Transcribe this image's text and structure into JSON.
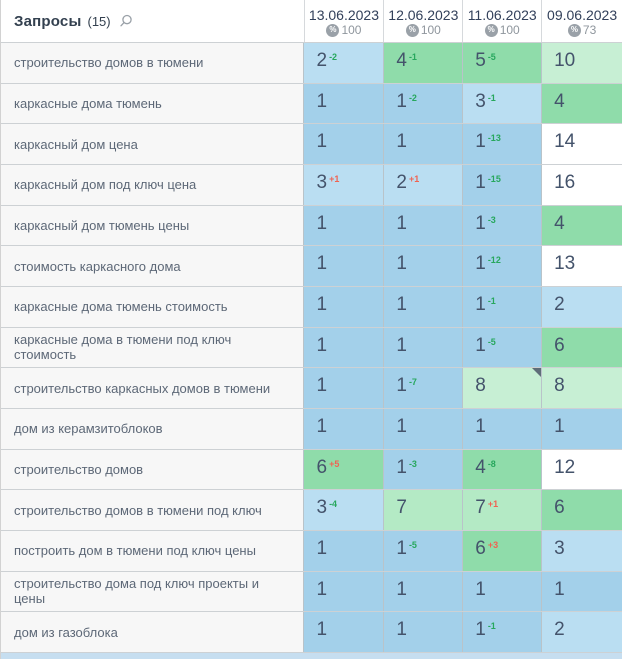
{
  "header": {
    "queries_label": "Запросы",
    "queries_count": "(15)",
    "columns": [
      {
        "date": "13.06.2023",
        "percent_symbol": "%",
        "percent": "100"
      },
      {
        "date": "12.06.2023",
        "percent_symbol": "%",
        "percent": "100"
      },
      {
        "date": "11.06.2023",
        "percent_symbol": "%",
        "percent": "100"
      },
      {
        "date": "09.06.2023",
        "percent_symbol": "%",
        "percent": "73"
      }
    ]
  },
  "colors": {
    "tones": {
      "pos1": "#a3d0ea",
      "pos2_3": "#badef2",
      "pos4_6": "#8fdcaa",
      "pos7": "#b4eac5",
      "pos8_10": "#c7efd4",
      "over10": "#ffffff"
    },
    "delta": {
      "green": "#27a75d",
      "red": "#ef6352"
    },
    "bottom_strip": "#c6def0"
  },
  "rows": [
    {
      "query": "строительство домов в тюмени",
      "cells": [
        {
          "value": "2",
          "delta": "-2",
          "delta_color": "green",
          "tone": "pos2_3"
        },
        {
          "value": "4",
          "delta": "-1",
          "delta_color": "green",
          "tone": "pos4_6"
        },
        {
          "value": "5",
          "delta": "-5",
          "delta_color": "green",
          "tone": "pos4_6"
        },
        {
          "value": "10",
          "tone": "pos8_10"
        }
      ]
    },
    {
      "query": "каркасные дома тюмень",
      "cells": [
        {
          "value": "1",
          "tone": "pos1"
        },
        {
          "value": "1",
          "delta": "-2",
          "delta_color": "green",
          "tone": "pos1"
        },
        {
          "value": "3",
          "delta": "-1",
          "delta_color": "green",
          "tone": "pos2_3"
        },
        {
          "value": "4",
          "tone": "pos4_6"
        }
      ]
    },
    {
      "query": "каркасный дом цена",
      "cells": [
        {
          "value": "1",
          "tone": "pos1"
        },
        {
          "value": "1",
          "tone": "pos1"
        },
        {
          "value": "1",
          "delta": "-13",
          "delta_color": "green",
          "tone": "pos1"
        },
        {
          "value": "14",
          "tone": "over10"
        }
      ]
    },
    {
      "query": "каркасный дом под ключ цена",
      "cells": [
        {
          "value": "3",
          "delta": "+1",
          "delta_color": "red",
          "tone": "pos2_3"
        },
        {
          "value": "2",
          "delta": "+1",
          "delta_color": "red",
          "tone": "pos2_3"
        },
        {
          "value": "1",
          "delta": "-15",
          "delta_color": "green",
          "tone": "pos1"
        },
        {
          "value": "16",
          "tone": "over10"
        }
      ]
    },
    {
      "query": "каркасный дом тюмень цены",
      "cells": [
        {
          "value": "1",
          "tone": "pos1"
        },
        {
          "value": "1",
          "tone": "pos1"
        },
        {
          "value": "1",
          "delta": "-3",
          "delta_color": "green",
          "tone": "pos1"
        },
        {
          "value": "4",
          "tone": "pos4_6"
        }
      ]
    },
    {
      "query": "стоимость каркасного дома",
      "cells": [
        {
          "value": "1",
          "tone": "pos1"
        },
        {
          "value": "1",
          "tone": "pos1"
        },
        {
          "value": "1",
          "delta": "-12",
          "delta_color": "green",
          "tone": "pos1"
        },
        {
          "value": "13",
          "tone": "over10"
        }
      ]
    },
    {
      "query": "каркасные дома тюмень стоимость",
      "cells": [
        {
          "value": "1",
          "tone": "pos1"
        },
        {
          "value": "1",
          "tone": "pos1"
        },
        {
          "value": "1",
          "delta": "-1",
          "delta_color": "green",
          "tone": "pos1"
        },
        {
          "value": "2",
          "tone": "pos2_3"
        }
      ]
    },
    {
      "query": "каркасные дома в тюмени под ключ стоимость",
      "cells": [
        {
          "value": "1",
          "tone": "pos1"
        },
        {
          "value": "1",
          "tone": "pos1"
        },
        {
          "value": "1",
          "delta": "-5",
          "delta_color": "green",
          "tone": "pos1"
        },
        {
          "value": "6",
          "tone": "pos4_6"
        }
      ]
    },
    {
      "query": "строительство каркасных домов в тюмени",
      "cells": [
        {
          "value": "1",
          "tone": "pos1"
        },
        {
          "value": "1",
          "delta": "-7",
          "delta_color": "green",
          "tone": "pos1"
        },
        {
          "value": "8",
          "tone": "pos8_10",
          "marker": true
        },
        {
          "value": "8",
          "tone": "pos8_10"
        }
      ]
    },
    {
      "query": "дом из керамзитоблоков",
      "cells": [
        {
          "value": "1",
          "tone": "pos1"
        },
        {
          "value": "1",
          "tone": "pos1"
        },
        {
          "value": "1",
          "tone": "pos1"
        },
        {
          "value": "1",
          "tone": "pos1"
        }
      ]
    },
    {
      "query": "строительство домов",
      "cells": [
        {
          "value": "6",
          "delta": "+5",
          "delta_color": "red",
          "tone": "pos4_6"
        },
        {
          "value": "1",
          "delta": "-3",
          "delta_color": "green",
          "tone": "pos1"
        },
        {
          "value": "4",
          "delta": "-8",
          "delta_color": "green",
          "tone": "pos4_6"
        },
        {
          "value": "12",
          "tone": "over10"
        }
      ]
    },
    {
      "query": "строительство домов в тюмени под ключ",
      "cells": [
        {
          "value": "3",
          "delta": "-4",
          "delta_color": "green",
          "tone": "pos2_3"
        },
        {
          "value": "7",
          "tone": "pos7"
        },
        {
          "value": "7",
          "delta": "+1",
          "delta_color": "red",
          "tone": "pos7"
        },
        {
          "value": "6",
          "tone": "pos4_6"
        }
      ]
    },
    {
      "query": "построить дом в тюмени под ключ цены",
      "cells": [
        {
          "value": "1",
          "tone": "pos1"
        },
        {
          "value": "1",
          "delta": "-5",
          "delta_color": "green",
          "tone": "pos1"
        },
        {
          "value": "6",
          "delta": "+3",
          "delta_color": "red",
          "tone": "pos4_6"
        },
        {
          "value": "3",
          "tone": "pos2_3"
        }
      ]
    },
    {
      "query": "строительство дома под ключ проекты и цены",
      "cells": [
        {
          "value": "1",
          "tone": "pos1"
        },
        {
          "value": "1",
          "tone": "pos1"
        },
        {
          "value": "1",
          "tone": "pos1"
        },
        {
          "value": "1",
          "tone": "pos1"
        }
      ]
    },
    {
      "query": "дом из газоблока",
      "cells": [
        {
          "value": "1",
          "tone": "pos1"
        },
        {
          "value": "1",
          "tone": "pos1"
        },
        {
          "value": "1",
          "delta": "-1",
          "delta_color": "green",
          "tone": "pos1"
        },
        {
          "value": "2",
          "tone": "pos2_3"
        }
      ]
    }
  ]
}
